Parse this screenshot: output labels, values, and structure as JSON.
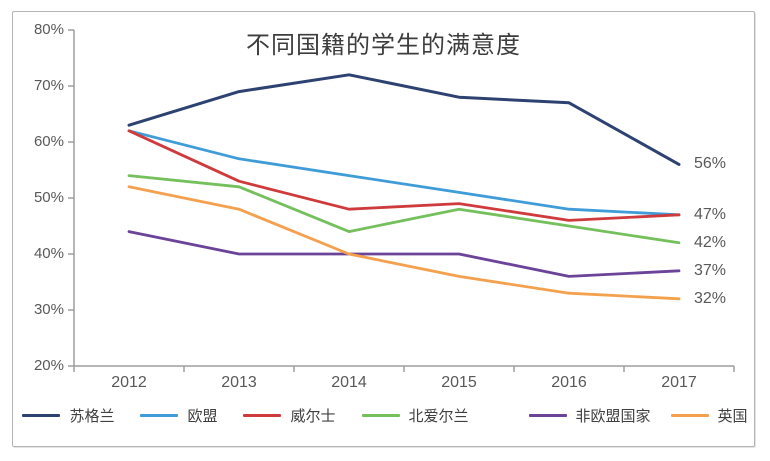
{
  "chart_data": {
    "type": "line",
    "title": "不同国籍的学生的满意度",
    "categories": [
      "2012",
      "2013",
      "2014",
      "2015",
      "2016",
      "2017"
    ],
    "y_ticks": [
      "80%",
      "70%",
      "60%",
      "50%",
      "40%",
      "30%",
      "20%"
    ],
    "y_tick_values": [
      80,
      70,
      60,
      50,
      40,
      30,
      20
    ],
    "ylim": [
      20,
      80
    ],
    "grid": false,
    "legend_position": "bottom",
    "series": [
      {
        "name": "苏格兰",
        "color": "#2e4272",
        "values": [
          63,
          69,
          72,
          68,
          67,
          56
        ]
      },
      {
        "name": "欧盟",
        "color": "#3f9cd8",
        "values": [
          62,
          57,
          54,
          51,
          48,
          47
        ]
      },
      {
        "name": "威尔士",
        "color": "#cf3a3d",
        "values": [
          62,
          53,
          48,
          49,
          46,
          47
        ]
      },
      {
        "name": "北爱尔兰",
        "color": "#75c05c",
        "values": [
          54,
          52,
          44,
          48,
          45,
          42
        ]
      },
      {
        "name": "非欧盟国家",
        "color": "#6b4399",
        "values": [
          44,
          40,
          40,
          40,
          36,
          37
        ]
      },
      {
        "name": "英国",
        "color": "#f4a14f",
        "values": [
          52,
          48,
          40,
          36,
          33,
          32
        ]
      }
    ],
    "end_labels": [
      {
        "text": "56%",
        "value": 56
      },
      {
        "text": "47%",
        "value": 47
      },
      {
        "text": "42%",
        "value": 42
      },
      {
        "text": "37%",
        "value": 37
      },
      {
        "text": "32%",
        "value": 32
      }
    ],
    "colors": {
      "axis": "#9e9e9e",
      "tick_label": "#595959",
      "end_label": "#595959",
      "legend_text": "#404040",
      "title_text": "#3d3d3d"
    }
  }
}
